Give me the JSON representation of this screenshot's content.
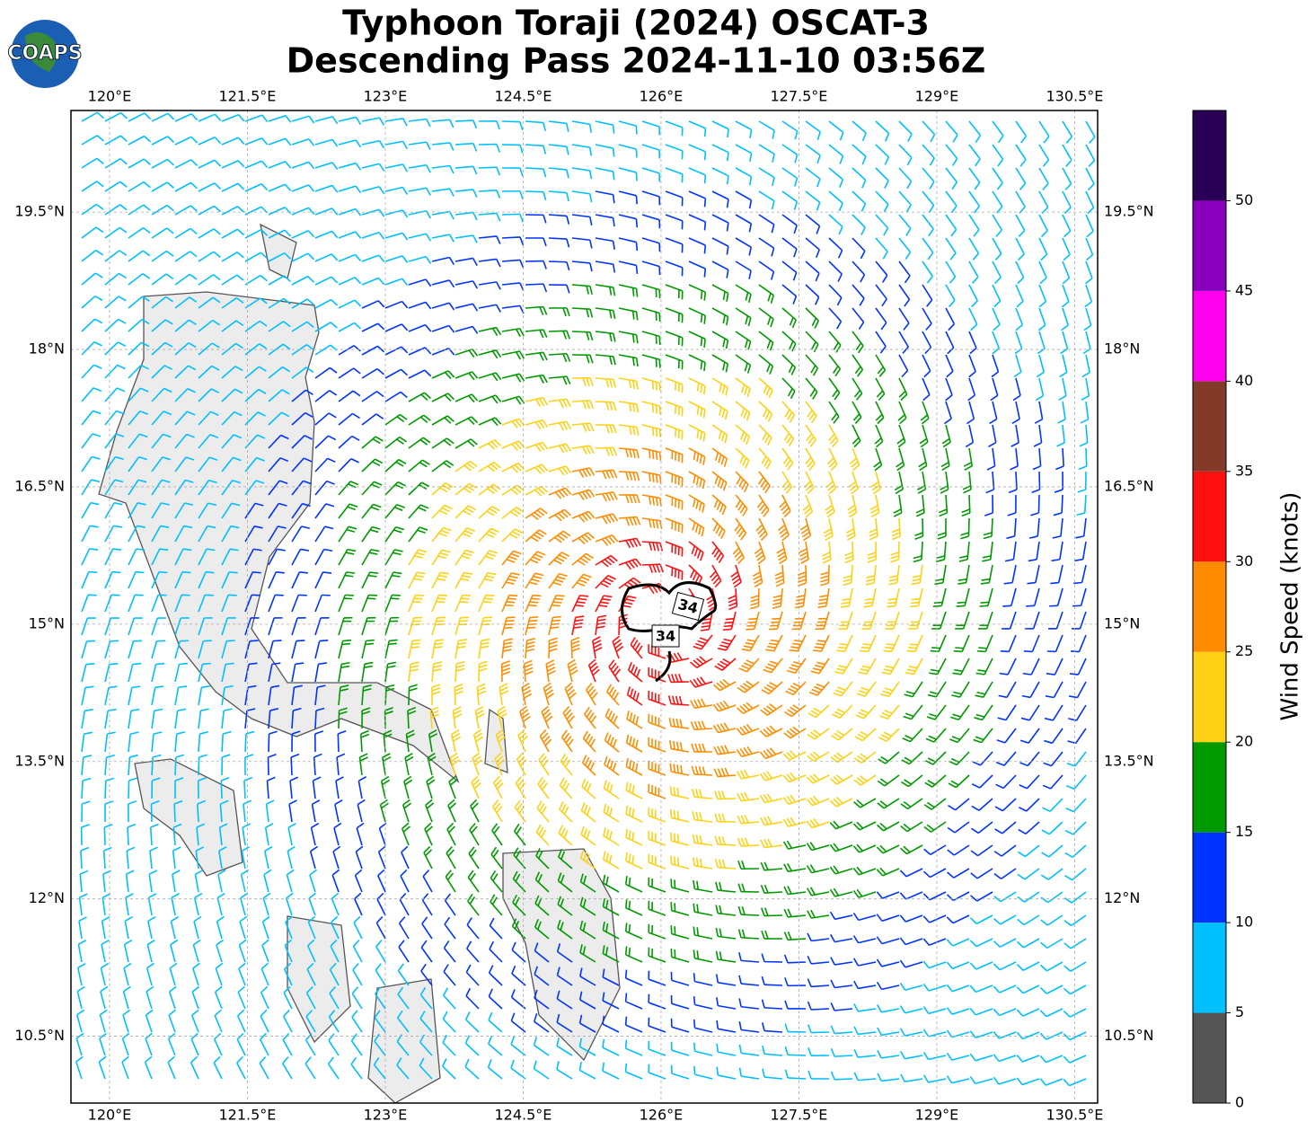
{
  "chart_data": {
    "type": "map",
    "title": [
      "Typhoon Toraji (2024) OSCAT-3",
      "Descending Pass 2024-11-10 03:56Z"
    ],
    "logo": "COAPS",
    "xlim": [
      119.58,
      130.75
    ],
    "ylim": [
      9.77,
      20.61
    ],
    "xticks": [
      {
        "value": 120,
        "label": "120°E"
      },
      {
        "value": 121.5,
        "label": "121.5°E"
      },
      {
        "value": 123,
        "label": "123°E"
      },
      {
        "value": 124.5,
        "label": "124.5°E"
      },
      {
        "value": 126,
        "label": "126°E"
      },
      {
        "value": 127.5,
        "label": "127.5°E"
      },
      {
        "value": 129,
        "label": "129°E"
      },
      {
        "value": 130.5,
        "label": "130.5°E"
      }
    ],
    "yticks": [
      {
        "value": 10.5,
        "label": "10.5°N"
      },
      {
        "value": 12,
        "label": "12°N"
      },
      {
        "value": 13.5,
        "label": "13.5°N"
      },
      {
        "value": 15,
        "label": "15°N"
      },
      {
        "value": 16.5,
        "label": "16.5°N"
      },
      {
        "value": 18,
        "label": "18°N"
      },
      {
        "value": 19.5,
        "label": "19.5°N"
      }
    ],
    "grid": true,
    "contour_labels": [
      "34",
      "34"
    ],
    "colorbar": {
      "label": "Wind Speed (knots)",
      "lim": [
        0,
        55
      ],
      "ticks": [
        0,
        5,
        10,
        15,
        20,
        25,
        30,
        35,
        40,
        45,
        50
      ],
      "bounds": [
        0,
        5,
        10,
        15,
        20,
        25,
        30,
        35,
        40,
        45,
        50,
        55
      ],
      "colors": [
        "#555555",
        "#00bfff",
        "#0033ff",
        "#009900",
        "#fcd116",
        "#ff8c00",
        "#ff1010",
        "#833b29",
        "#ff00ee",
        "#8800bb",
        "#2a0055"
      ]
    }
  }
}
